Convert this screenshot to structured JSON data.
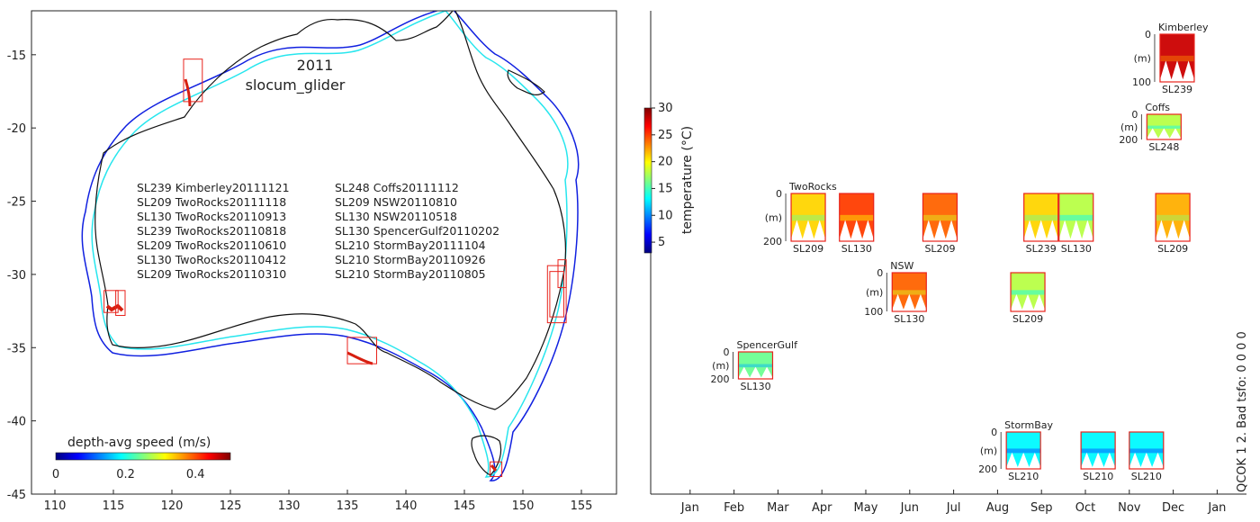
{
  "colors": {
    "frame": "#222222",
    "box": "#e8231c",
    "coast": "#111111",
    "isobath_inner": "#27e6ee",
    "isobath_outer": "#1020e0",
    "track": "#d61f10"
  },
  "chart_data": [
    {
      "type": "map",
      "name": "glider-deployment-map",
      "title": "2011",
      "subtitle": "slocum_glider",
      "xlim": [
        108,
        158
      ],
      "ylim": [
        -45,
        -12
      ],
      "x_ticks": [
        110,
        115,
        120,
        125,
        130,
        135,
        140,
        145,
        150,
        155
      ],
      "y_ticks": [
        -15,
        -20,
        -25,
        -30,
        -35,
        -40,
        -45
      ],
      "deployments_left": [
        "SL239 Kimberley20111121",
        "SL209 TwoRocks20111118",
        "SL130 TwoRocks20110913",
        "SL239 TwoRocks20110818",
        "SL209 TwoRocks20110610",
        "SL130 TwoRocks20110412",
        "SL209 TwoRocks20110310"
      ],
      "deployments_right": [
        "SL248 Coffs20111112",
        "SL209 NSW20110810",
        "SL130 NSW20110518",
        "SL130 SpencerGulf20110202",
        "SL210 StormBay20111104",
        "SL210 StormBay20110926",
        "SL210 StormBay20110805"
      ],
      "region_boxes": [
        {
          "name": "Kimberley",
          "lon": [
            121.0,
            122.6
          ],
          "lat": [
            -18.2,
            -15.3
          ]
        },
        {
          "name": "TwoRocks-a",
          "lon": [
            114.2,
            115.4
          ],
          "lat": [
            -32.6,
            -31.1
          ]
        },
        {
          "name": "TwoRocks-b",
          "lon": [
            115.2,
            116.0
          ],
          "lat": [
            -32.8,
            -31.1
          ]
        },
        {
          "name": "SpencerGulf",
          "lon": [
            135.0,
            137.5
          ],
          "lat": [
            -36.1,
            -34.3
          ]
        },
        {
          "name": "NSW-a",
          "lon": [
            152.1,
            153.7
          ],
          "lat": [
            -33.3,
            -29.4
          ]
        },
        {
          "name": "NSW-b",
          "lon": [
            152.3,
            153.5
          ],
          "lat": [
            -32.9,
            -29.8
          ]
        },
        {
          "name": "Coffs",
          "lon": [
            153.0,
            153.7
          ],
          "lat": [
            -30.9,
            -29.0
          ]
        },
        {
          "name": "StormBay",
          "lon": [
            147.2,
            148.2
          ],
          "lat": [
            -43.8,
            -42.8
          ]
        }
      ],
      "colorbar": {
        "label": "depth-avg speed (m/s)",
        "range": [
          0,
          0.5
        ],
        "ticks": [
          0,
          0.2,
          0.4
        ]
      }
    },
    {
      "type": "timeline",
      "name": "temperature-profile-timeline",
      "x_categories": [
        "Jan",
        "Feb",
        "Mar",
        "Apr",
        "May",
        "Jun",
        "Jul",
        "Aug",
        "Sep",
        "Oct",
        "Nov",
        "Dec",
        "Jan"
      ],
      "depth_unit": "(m)",
      "rows": [
        {
          "site": "Kimberley",
          "depth_max": 100,
          "deployments": [
            {
              "glider": "SL239",
              "start_month": 11.7,
              "temp": 28
            }
          ]
        },
        {
          "site": "Coffs",
          "depth_max": 200,
          "deployments": [
            {
              "glider": "SL248",
              "start_month": 11.4,
              "temp": 18
            }
          ]
        },
        {
          "site": "TwoRocks",
          "depth_max": 200,
          "deployments": [
            {
              "glider": "SL209",
              "start_month": 3.3,
              "temp": 21
            },
            {
              "glider": "SL130",
              "start_month": 4.4,
              "temp": 25
            },
            {
              "glider": "SL209",
              "start_month": 6.3,
              "temp": 24
            },
            {
              "glider": "SL239",
              "start_month": 8.6,
              "temp": 21
            },
            {
              "glider": "SL130",
              "start_month": 9.4,
              "temp": 18
            },
            {
              "glider": "SL209",
              "start_month": 11.6,
              "temp": 22
            }
          ]
        },
        {
          "site": "NSW",
          "depth_max": 100,
          "deployments": [
            {
              "glider": "SL130",
              "start_month": 5.6,
              "temp": 24
            },
            {
              "glider": "SL209",
              "start_month": 8.3,
              "temp": 18
            }
          ]
        },
        {
          "site": "SpencerGulf",
          "depth_max": 200,
          "deployments": [
            {
              "glider": "SL130",
              "start_month": 2.1,
              "temp": 16
            }
          ]
        },
        {
          "site": "StormBay",
          "depth_max": 200,
          "deployments": [
            {
              "glider": "SL210",
              "start_month": 8.2,
              "temp": 13
            },
            {
              "glider": "SL210",
              "start_month": 9.9,
              "temp": 13
            },
            {
              "glider": "SL210",
              "start_month": 11.0,
              "temp": 13
            }
          ]
        }
      ],
      "side_note": "QCOK 1  2. Bad tsfo: 0  0  0  0",
      "colorbar": {
        "label": "temperature (°C)",
        "range": [
          3,
          30
        ],
        "ticks": [
          5,
          10,
          15,
          20,
          25,
          30
        ]
      }
    }
  ]
}
